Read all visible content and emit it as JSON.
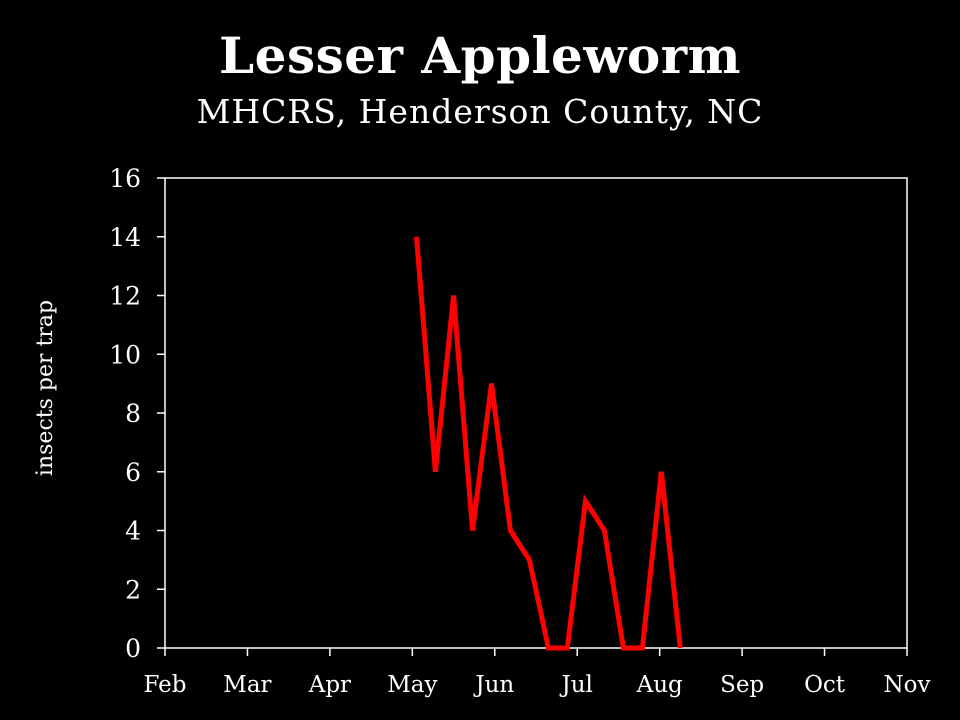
{
  "chart_data": {
    "type": "line",
    "title": "Lesser Appleworm",
    "subtitle": "MHCRS, Henderson County, NC",
    "xlabel": "",
    "ylabel": "insects per trap",
    "x_categories": [
      "Feb",
      "Mar",
      "Apr",
      "May",
      "Jun",
      "Jul",
      "Aug",
      "Sep",
      "Oct",
      "Nov"
    ],
    "xlim": [
      0,
      9
    ],
    "ylim": [
      0,
      16
    ],
    "yticks": [
      0,
      2,
      4,
      6,
      8,
      10,
      12,
      14,
      16
    ],
    "grid": false,
    "series": [
      {
        "color": "#ff0000",
        "x": [
          3.05,
          3.28,
          3.5,
          3.73,
          3.96,
          4.19,
          4.42,
          4.65,
          4.88,
          5.1,
          5.33,
          5.56,
          5.79,
          6.02,
          6.25
        ],
        "y": [
          14,
          6,
          12,
          4,
          9,
          4,
          3,
          0,
          0,
          5,
          4,
          0,
          0,
          6,
          0
        ]
      }
    ]
  }
}
